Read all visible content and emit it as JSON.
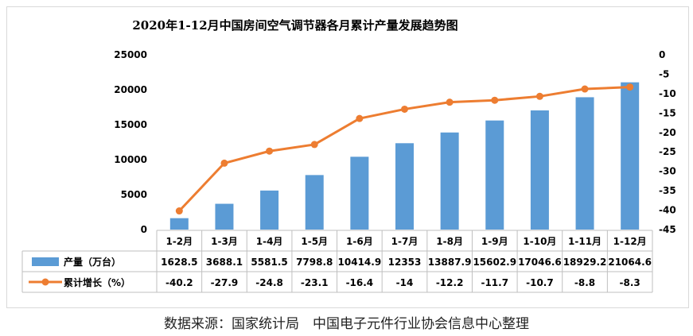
{
  "chart_data": {
    "type": "bar",
    "title": "2020年1-12月中国房间空气调节器各月累计产量发展趋势图",
    "categories": [
      "1-2月",
      "1-3月",
      "1-4月",
      "1-5月",
      "1-6月",
      "1-7月",
      "1-8月",
      "1-9月",
      "1-10月",
      "1-11月",
      "1-12月"
    ],
    "series": [
      {
        "name": "产量（万台）",
        "type": "bar",
        "axis": "left",
        "color": "#5b9bd5",
        "values": [
          1628.5,
          3688.1,
          5581.5,
          7798.8,
          10414.9,
          12353,
          13887.9,
          15602.9,
          17046.6,
          18929.2,
          21064.6
        ],
        "labels": [
          "1628.5",
          "3688.1",
          "5581.5",
          "7798.8",
          "10414.9",
          "12353",
          "13887.9",
          "15602.9",
          "17046.6",
          "18929.2",
          "21064.6"
        ]
      },
      {
        "name": "累计增长（%）",
        "type": "line",
        "axis": "right",
        "color": "#ed7d31",
        "values": [
          -40.2,
          -27.9,
          -24.8,
          -23.1,
          -16.4,
          -14,
          -12.2,
          -11.7,
          -10.7,
          -8.8,
          -8.3
        ],
        "labels": [
          "-40.2",
          "-27.9",
          "-24.8",
          "-23.1",
          "-16.4",
          "-14",
          "-12.2",
          "-11.7",
          "-10.7",
          "-8.8",
          "-8.3"
        ]
      }
    ],
    "y_left": {
      "min": 0,
      "max": 25000,
      "step": 5000,
      "ticks": [
        "0",
        "5000",
        "10000",
        "15000",
        "20000",
        "25000"
      ]
    },
    "y_right": {
      "min": -45,
      "max": 0,
      "step": 5,
      "ticks": [
        "-45",
        "-40",
        "-35",
        "-30",
        "-25",
        "-20",
        "-15",
        "-10",
        "-5",
        "0"
      ]
    },
    "grid": false,
    "legend": "data-table"
  },
  "source_note": "数据来源：国家统计局　中国电子元件行业协会信息中心整理"
}
